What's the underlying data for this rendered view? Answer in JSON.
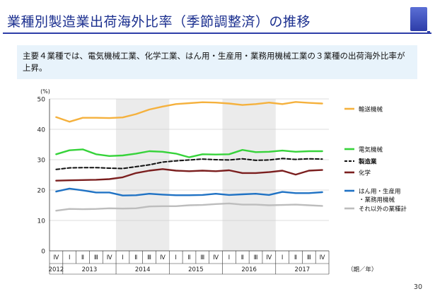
{
  "slide": {
    "title": "業種別製造業出荷海外比率（季節調整済）の推移",
    "summary": "主要４業種では、電気機械工業、化学工業、はん用・生産用・業務用機械工業の３業種の出荷海外比率が上昇。",
    "page_number": "30"
  },
  "chart_data": {
    "type": "line",
    "yunit": "(%)",
    "xunit": "（期／年）",
    "ylim": [
      0,
      50
    ],
    "yticks": [
      0,
      10,
      20,
      30,
      40,
      50
    ],
    "quarters": [
      "Ⅳ",
      "Ⅰ",
      "Ⅱ",
      "Ⅲ",
      "Ⅳ",
      "Ⅰ",
      "Ⅱ",
      "Ⅲ",
      "Ⅳ",
      "Ⅰ",
      "Ⅱ",
      "Ⅲ",
      "Ⅳ",
      "Ⅰ",
      "Ⅱ",
      "Ⅲ",
      "Ⅳ",
      "Ⅰ",
      "Ⅱ",
      "Ⅲ",
      "Ⅳ"
    ],
    "years": [
      {
        "label": "2012",
        "start": 0,
        "end": 0
      },
      {
        "label": "2013",
        "start": 1,
        "end": 4
      },
      {
        "label": "2014",
        "start": 5,
        "end": 8
      },
      {
        "label": "2015",
        "start": 9,
        "end": 12
      },
      {
        "label": "2016",
        "start": 13,
        "end": 16
      },
      {
        "label": "2017",
        "start": 17,
        "end": 20
      }
    ],
    "shaded_years": [
      "2014",
      "2016"
    ],
    "series": [
      {
        "name": "輸送機械",
        "color": "#f5b13d",
        "dash": false,
        "values": [
          44.0,
          42.5,
          43.8,
          43.8,
          43.7,
          43.9,
          45.0,
          46.5,
          47.5,
          48.3,
          48.6,
          48.9,
          48.8,
          48.5,
          48.0,
          48.3,
          48.8,
          48.3,
          49.0,
          48.7,
          48.5
        ]
      },
      {
        "name": "電気機械",
        "color": "#36d33a",
        "dash": false,
        "values": [
          31.8,
          33.1,
          33.4,
          31.8,
          31.2,
          31.4,
          32.0,
          32.8,
          32.6,
          32.0,
          30.8,
          31.8,
          31.7,
          31.8,
          33.2,
          32.5,
          32.6,
          33.0,
          32.6,
          32.8,
          32.8
        ]
      },
      {
        "name": "製造業",
        "color": "#111111",
        "dash": true,
        "values": [
          26.8,
          27.3,
          27.4,
          27.4,
          27.2,
          27.1,
          27.7,
          28.3,
          29.2,
          29.6,
          29.9,
          30.2,
          30.0,
          29.9,
          30.3,
          29.8,
          29.9,
          30.4,
          30.1,
          30.3,
          30.2
        ]
      },
      {
        "name": "化学",
        "color": "#7b1f1f",
        "dash": false,
        "values": [
          23.1,
          23.2,
          23.3,
          23.4,
          23.6,
          24.2,
          25.6,
          26.4,
          26.9,
          26.4,
          26.2,
          26.4,
          26.2,
          26.5,
          25.6,
          25.6,
          25.9,
          26.4,
          25.1,
          26.4,
          26.6
        ]
      },
      {
        "name": "はん用・生産用\n・業務用機械",
        "color": "#1f72c4",
        "dash": false,
        "values": [
          19.5,
          20.5,
          19.9,
          19.2,
          19.2,
          18.2,
          18.3,
          18.8,
          18.5,
          18.3,
          18.3,
          18.4,
          18.8,
          18.4,
          18.6,
          18.8,
          18.4,
          19.4,
          19.0,
          19.0,
          19.3
        ]
      },
      {
        "name": "それ以外の業種計",
        "color": "#bdbdbd",
        "dash": false,
        "values": [
          13.2,
          13.8,
          13.7,
          13.8,
          14.0,
          13.9,
          14.0,
          14.6,
          14.7,
          14.7,
          15.0,
          15.1,
          15.4,
          15.6,
          15.2,
          15.2,
          15.0,
          15.1,
          15.2,
          15.0,
          14.8
        ]
      }
    ]
  }
}
